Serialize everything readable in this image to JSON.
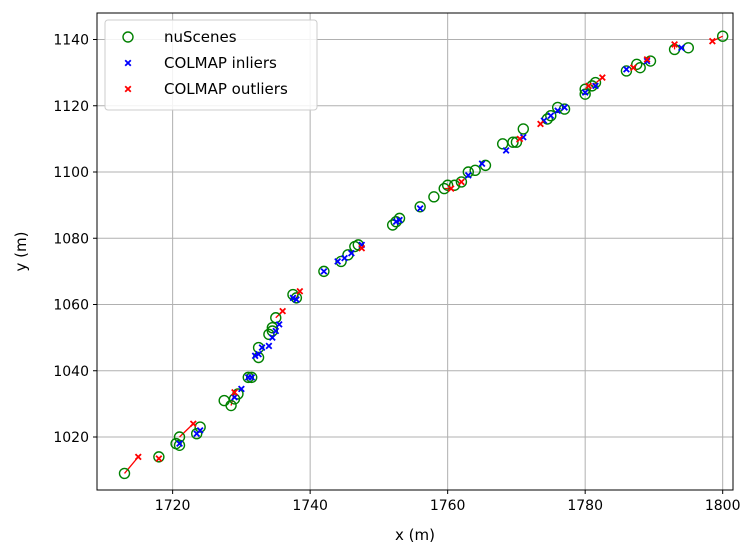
{
  "chart_data": {
    "type": "scatter",
    "xlabel": "x (m)",
    "ylabel": "y (m)",
    "xlim": [
      1709,
      1801.5
    ],
    "ylim": [
      1004,
      1148
    ],
    "xticks": [
      1720,
      1740,
      1760,
      1780,
      1800
    ],
    "yticks": [
      1020,
      1040,
      1060,
      1080,
      1100,
      1120,
      1140
    ],
    "grid": true,
    "legend_position": "top-left",
    "legend": [
      {
        "label": "nuScenes",
        "marker": "circle",
        "color": "#008000"
      },
      {
        "label": "COLMAP inliers",
        "marker": "x",
        "color": "#0000ff"
      },
      {
        "label": "COLMAP outliers",
        "marker": "x",
        "color": "#ff0000"
      }
    ],
    "series": [
      {
        "name": "nuScenes",
        "color": "#008000",
        "points": [
          [
            1713,
            1009
          ],
          [
            1718,
            1014
          ],
          [
            1720.5,
            1018
          ],
          [
            1721,
            1017.5
          ],
          [
            1721,
            1020
          ],
          [
            1723.5,
            1021
          ],
          [
            1724,
            1023
          ],
          [
            1727.5,
            1031
          ],
          [
            1728.5,
            1029.5
          ],
          [
            1729,
            1031.5
          ],
          [
            1729.5,
            1033
          ],
          [
            1731,
            1038
          ],
          [
            1731.5,
            1038
          ],
          [
            1732.5,
            1047
          ],
          [
            1732.5,
            1044
          ],
          [
            1734,
            1051
          ],
          [
            1734.5,
            1053
          ],
          [
            1735,
            1056
          ],
          [
            1734.5,
            1052
          ],
          [
            1737.5,
            1063
          ],
          [
            1738,
            1062
          ],
          [
            1742,
            1070
          ],
          [
            1744.5,
            1073
          ],
          [
            1745.5,
            1075
          ],
          [
            1746.5,
            1077.5
          ],
          [
            1747,
            1078
          ],
          [
            1752,
            1084
          ],
          [
            1752.5,
            1085
          ],
          [
            1753,
            1086
          ],
          [
            1756,
            1089.5
          ],
          [
            1758,
            1092.5
          ],
          [
            1759.5,
            1095
          ],
          [
            1760,
            1096
          ],
          [
            1761,
            1096
          ],
          [
            1762,
            1097
          ],
          [
            1763,
            1100
          ],
          [
            1764,
            1100.5
          ],
          [
            1765.5,
            1102
          ],
          [
            1768,
            1108.5
          ],
          [
            1769.5,
            1109
          ],
          [
            1770,
            1109
          ],
          [
            1771,
            1113
          ],
          [
            1774.5,
            1116
          ],
          [
            1775,
            1117
          ],
          [
            1776,
            1119.5
          ],
          [
            1777,
            1119
          ],
          [
            1780,
            1123.5
          ],
          [
            1780,
            1125
          ],
          [
            1781,
            1126
          ],
          [
            1781.5,
            1127
          ],
          [
            1786,
            1130.5
          ],
          [
            1787.5,
            1132.5
          ],
          [
            1788,
            1131.5
          ],
          [
            1789.5,
            1133.5
          ],
          [
            1793,
            1137
          ],
          [
            1795,
            1137.5
          ],
          [
            1800,
            1141
          ]
        ]
      },
      {
        "name": "COLMAP inliers",
        "color": "#0000ff",
        "points": [
          [
            1721,
            1018
          ],
          [
            1723.5,
            1021
          ],
          [
            1724,
            1022
          ],
          [
            1729,
            1032
          ],
          [
            1730,
            1034.5
          ],
          [
            1731,
            1038
          ],
          [
            1731.5,
            1038
          ],
          [
            1732,
            1044.5
          ],
          [
            1732.5,
            1045
          ],
          [
            1733,
            1047
          ],
          [
            1734,
            1047.5
          ],
          [
            1734.5,
            1050
          ],
          [
            1735,
            1052
          ],
          [
            1735.5,
            1054
          ],
          [
            1737.5,
            1062
          ],
          [
            1738,
            1061.5
          ],
          [
            1742,
            1070
          ],
          [
            1744,
            1073
          ],
          [
            1745,
            1074
          ],
          [
            1746,
            1075.5
          ],
          [
            1747.5,
            1078
          ],
          [
            1752.5,
            1085
          ],
          [
            1753,
            1085.5
          ],
          [
            1756,
            1089
          ],
          [
            1763,
            1099
          ],
          [
            1765,
            1102.5
          ],
          [
            1768.5,
            1106.5
          ],
          [
            1771,
            1110.5
          ],
          [
            1774,
            1115.5
          ],
          [
            1775,
            1117
          ],
          [
            1776,
            1118.5
          ],
          [
            1777,
            1119.5
          ],
          [
            1780,
            1124
          ],
          [
            1781.5,
            1126
          ],
          [
            1786,
            1131
          ],
          [
            1789,
            1133.5
          ],
          [
            1794,
            1137.5
          ]
        ]
      },
      {
        "name": "COLMAP outliers",
        "color": "#ff0000",
        "points": [
          [
            1715,
            1014
          ],
          [
            1718,
            1013.5
          ],
          [
            1723,
            1024
          ],
          [
            1729,
            1033.5
          ],
          [
            1736,
            1058
          ],
          [
            1738.5,
            1064
          ],
          [
            1747.5,
            1077
          ],
          [
            1760.5,
            1095
          ],
          [
            1762,
            1097
          ],
          [
            1770.5,
            1110
          ],
          [
            1773.5,
            1114.5
          ],
          [
            1780.5,
            1126
          ],
          [
            1782.5,
            1128.5
          ],
          [
            1787,
            1131.5
          ],
          [
            1789,
            1134
          ],
          [
            1793,
            1138.5
          ],
          [
            1798.5,
            1139.5
          ]
        ]
      }
    ],
    "error_lines": [
      [
        [
          1713,
          1009
        ],
        [
          1715,
          1014
        ]
      ],
      [
        [
          1721,
          1020
        ],
        [
          1723,
          1024
        ]
      ],
      [
        [
          1728.5,
          1029.5
        ],
        [
          1729,
          1033.5
        ]
      ],
      [
        [
          1735,
          1056
        ],
        [
          1736,
          1058
        ]
      ],
      [
        [
          1738,
          1062
        ],
        [
          1738.5,
          1064
        ]
      ],
      [
        [
          1759.5,
          1095
        ],
        [
          1760.5,
          1095
        ]
      ],
      [
        [
          1770,
          1109
        ],
        [
          1770.5,
          1110
        ]
      ],
      [
        [
          1781,
          1126
        ],
        [
          1782.5,
          1128.5
        ]
      ],
      [
        [
          1793,
          1137
        ],
        [
          1793,
          1138.5
        ]
      ],
      [
        [
          1800,
          1141
        ],
        [
          1798.5,
          1139.5
        ]
      ]
    ]
  }
}
